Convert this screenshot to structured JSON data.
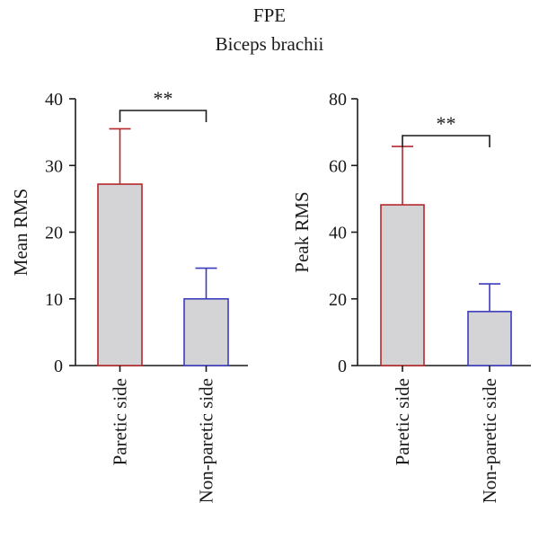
{
  "figure": {
    "title": "FPE",
    "subtitle": "Biceps brachii"
  },
  "colors": {
    "bar_fill": "#d4d4d6",
    "paretic": "#b5282b",
    "non_paretic": "#3b3bbd",
    "axis": "#1a1a1a"
  },
  "chart_data": [
    {
      "type": "bar",
      "title": "",
      "xlabel": "",
      "ylabel": "Mean RMS",
      "categories": [
        "Paretic side",
        "Non-paretic side"
      ],
      "values": [
        27.2,
        10.0
      ],
      "error": [
        8.3,
        4.6
      ],
      "ylim": [
        0,
        40
      ],
      "yticks": [
        0,
        10,
        20,
        30,
        40
      ],
      "significance": {
        "between": [
          0,
          1
        ],
        "label": "**"
      }
    },
    {
      "type": "bar",
      "title": "",
      "xlabel": "",
      "ylabel": "Peak RMS",
      "categories": [
        "Paretic side",
        "Non-paretic side"
      ],
      "values": [
        48.2,
        16.2
      ],
      "error": [
        17.5,
        8.3
      ],
      "ylim": [
        0,
        80
      ],
      "yticks": [
        0,
        20,
        40,
        60,
        80
      ],
      "significance": {
        "between": [
          0,
          1
        ],
        "label": "**"
      }
    }
  ]
}
